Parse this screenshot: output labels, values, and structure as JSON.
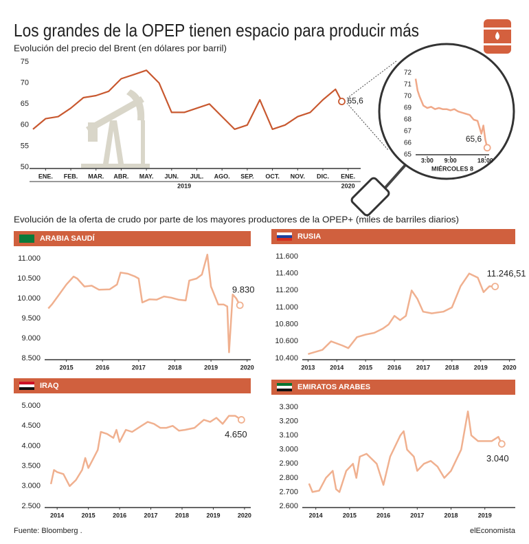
{
  "title": "Los grandes de la OPEP tienen espacio para producir más",
  "subtitle": "Evolución del precio del Brent (en dólares por barril)",
  "section_title": "Evolución de la oferta de crudo por parte de los mayores productores de la OPEP+ (miles de barriles diarios)",
  "source": "Fuente: Bloomberg .",
  "brand": "elEconomista",
  "chart_data": [
    {
      "type": "line",
      "color": "#c8582f",
      "x": [
        0,
        0.5,
        1,
        1.5,
        2,
        2.5,
        3,
        3.5,
        4,
        4.5,
        5,
        5.5,
        6,
        6.5,
        7,
        7.5,
        8,
        8.5,
        9,
        9.5,
        10,
        10.5,
        11,
        11.5,
        12,
        12.25
      ],
      "values": [
        59,
        61.5,
        62,
        64,
        66.5,
        67,
        68,
        71,
        72,
        73,
        70,
        63,
        63,
        64,
        65,
        62,
        59,
        60,
        66,
        59,
        60,
        62,
        63,
        66,
        68.5,
        65.6
      ],
      "end_label": "65,6",
      "xlim": [
        0,
        13
      ],
      "xticks": [
        {
          "value": 0.5,
          "label": "ENE."
        },
        {
          "value": 1.5,
          "label": "FEB."
        },
        {
          "value": 2.5,
          "label": "MAR."
        },
        {
          "value": 3.5,
          "label": "ABR."
        },
        {
          "value": 4.5,
          "label": "MAY."
        },
        {
          "value": 5.5,
          "label": "JUN."
        },
        {
          "value": 6.5,
          "label": "JUL."
        },
        {
          "value": 7.5,
          "label": "AGO."
        },
        {
          "value": 8.5,
          "label": "SEP."
        },
        {
          "value": 9.5,
          "label": "OCT."
        },
        {
          "value": 10.5,
          "label": "NOV."
        },
        {
          "value": 11.5,
          "label": "DIC."
        },
        {
          "value": 12.5,
          "label": "ENE."
        }
      ],
      "year_ticks": [
        {
          "value": 6,
          "label": "2019"
        },
        {
          "value": 12.5,
          "label": "2020"
        }
      ],
      "ylim": [
        50,
        75
      ],
      "yticks": [
        50,
        55,
        60,
        65,
        70,
        75
      ]
    },
    {
      "type": "line",
      "color": "#f0a888",
      "x": [
        0,
        0.5,
        1,
        2,
        3,
        4,
        5,
        6,
        7,
        8,
        9,
        10,
        11,
        12,
        13,
        14,
        15,
        16,
        17,
        17.5,
        18,
        18.5
      ],
      "values": [
        71.5,
        70.5,
        70,
        69.2,
        69,
        69.1,
        68.9,
        69,
        68.9,
        68.9,
        68.8,
        68.9,
        68.7,
        68.6,
        68.5,
        68.4,
        68,
        67.9,
        66.8,
        67.5,
        66.3,
        65.6
      ],
      "end_label": "65,6",
      "x_label": "MIÉRCOLES 8",
      "xlim": [
        0,
        19
      ],
      "xticks": [
        {
          "value": 3,
          "label": "3:00"
        },
        {
          "value": 9,
          "label": "9:00"
        },
        {
          "value": 18,
          "label": "18:00"
        }
      ],
      "ylim": [
        65,
        72
      ],
      "yticks": [
        65,
        66,
        67,
        68,
        69,
        70,
        71,
        72
      ]
    },
    {
      "type": "line",
      "title": "ARABIA SAUDÍ",
      "color": "#f0b08f",
      "x": [
        2014.5,
        2014.6,
        2014.8,
        2015.0,
        2015.2,
        2015.3,
        2015.5,
        2015.7,
        2015.9,
        2016.2,
        2016.4,
        2016.5,
        2016.7,
        2016.9,
        2017.0,
        2017.1,
        2017.3,
        2017.5,
        2017.7,
        2017.9,
        2018.1,
        2018.3,
        2018.4,
        2018.6,
        2018.75,
        2018.9,
        2019.0,
        2019.2,
        2019.35,
        2019.45,
        2019.5,
        2019.6,
        2019.7,
        2019.8
      ],
      "values": [
        9750,
        9850,
        10100,
        10350,
        10550,
        10500,
        10300,
        10320,
        10220,
        10230,
        10350,
        10650,
        10620,
        10550,
        10500,
        9900,
        9980,
        9970,
        10050,
        10020,
        9970,
        9950,
        10450,
        10500,
        10600,
        11100,
        10300,
        9850,
        9850,
        9800,
        8650,
        10100,
        10000,
        9830
      ],
      "end_label": "9.830",
      "xlim": [
        2014.4,
        2020.1
      ],
      "xticks": [
        2015,
        2016,
        2017,
        2018,
        2019,
        2020
      ],
      "ylim": [
        8500,
        11000
      ],
      "yticks": [
        {
          "value": 8500,
          "label": "8.500"
        },
        {
          "value": 9000,
          "label": "9.000"
        },
        {
          "value": 9500,
          "label": "9.500"
        },
        {
          "value": 10000,
          "label": "10.000"
        },
        {
          "value": 10500,
          "label": "10.500"
        },
        {
          "value": 11000,
          "label": "11.000"
        }
      ]
    },
    {
      "type": "line",
      "title": "RUSIA",
      "color": "#f0b08f",
      "x": [
        2013,
        2013.5,
        2013.8,
        2014.2,
        2014.4,
        2014.7,
        2015.0,
        2015.3,
        2015.6,
        2015.8,
        2016.0,
        2016.2,
        2016.4,
        2016.6,
        2016.8,
        2017.0,
        2017.3,
        2017.7,
        2018.0,
        2018.3,
        2018.6,
        2018.9,
        2019.1,
        2019.3,
        2019.5
      ],
      "values": [
        10450,
        10500,
        10600,
        10550,
        10520,
        10650,
        10680,
        10700,
        10750,
        10800,
        10900,
        10850,
        10900,
        11200,
        11100,
        10950,
        10930,
        10950,
        11000,
        11250,
        11400,
        11350,
        11180,
        11250,
        11246.51
      ],
      "end_label": "11.246,51",
      "xlim": [
        2012.8,
        2020.2
      ],
      "xticks": [
        2013,
        2014,
        2015,
        2016,
        2017,
        2018,
        2019,
        2020
      ],
      "ylim": [
        10400,
        11600
      ],
      "yticks": [
        {
          "value": 10400,
          "label": "10.400"
        },
        {
          "value": 10600,
          "label": "10.600"
        },
        {
          "value": 10800,
          "label": "10.800"
        },
        {
          "value": 11000,
          "label": "11.000"
        },
        {
          "value": 11200,
          "label": "11.200"
        },
        {
          "value": 11400,
          "label": "11.400"
        },
        {
          "value": 11600,
          "label": "11.600"
        }
      ]
    },
    {
      "type": "line",
      "title": "IRAQ",
      "color": "#f0b08f",
      "x": [
        2013.8,
        2013.9,
        2014.0,
        2014.2,
        2014.4,
        2014.6,
        2014.8,
        2014.9,
        2015.0,
        2015.1,
        2015.3,
        2015.4,
        2015.6,
        2015.8,
        2015.9,
        2016.0,
        2016.2,
        2016.4,
        2016.7,
        2016.9,
        2017.1,
        2017.3,
        2017.5,
        2017.7,
        2017.9,
        2018.1,
        2018.4,
        2018.7,
        2018.9,
        2019.1,
        2019.3,
        2019.5,
        2019.7,
        2019.9
      ],
      "values": [
        3050,
        3400,
        3350,
        3300,
        3000,
        3150,
        3400,
        3700,
        3450,
        3600,
        3900,
        4350,
        4300,
        4200,
        4400,
        4100,
        4400,
        4350,
        4500,
        4600,
        4550,
        4450,
        4450,
        4500,
        4380,
        4400,
        4450,
        4650,
        4600,
        4700,
        4550,
        4750,
        4750,
        4650
      ],
      "end_label": "4.650",
      "xlim": [
        2013.6,
        2020.2
      ],
      "xticks": [
        2014,
        2015,
        2016,
        2017,
        2018,
        2019,
        2020
      ],
      "ylim": [
        2500,
        5000
      ],
      "yticks": [
        {
          "value": 2500,
          "label": "2.500"
        },
        {
          "value": 3000,
          "label": "3.000"
        },
        {
          "value": 3500,
          "label": "3.500"
        },
        {
          "value": 4000,
          "label": "4.000"
        },
        {
          "value": 4500,
          "label": "4.500"
        },
        {
          "value": 5000,
          "label": "5.000"
        }
      ]
    },
    {
      "type": "line",
      "title": "EMIRATOS ARABES",
      "color": "#f0b08f",
      "x": [
        2013.8,
        2013.9,
        2014.1,
        2014.3,
        2014.5,
        2014.6,
        2014.7,
        2014.9,
        2015.1,
        2015.2,
        2015.3,
        2015.5,
        2015.8,
        2016.0,
        2016.2,
        2016.5,
        2016.6,
        2016.7,
        2016.9,
        2017.0,
        2017.2,
        2017.4,
        2017.6,
        2017.8,
        2018.0,
        2018.3,
        2018.5,
        2018.6,
        2018.8,
        2019.0,
        2019.2,
        2019.4,
        2019.5
      ],
      "values": [
        2760,
        2700,
        2710,
        2800,
        2850,
        2720,
        2700,
        2850,
        2900,
        2800,
        2950,
        2970,
        2900,
        2750,
        2950,
        3100,
        3130,
        3000,
        2950,
        2850,
        2900,
        2920,
        2880,
        2800,
        2850,
        3000,
        3270,
        3100,
        3060,
        3060,
        3060,
        3090,
        3040
      ],
      "end_label": "3.040",
      "xlim": [
        2013.6,
        2019.9
      ],
      "xticks": [
        2014,
        2015,
        2016,
        2017,
        2018,
        2019
      ],
      "ylim": [
        2600,
        3300
      ],
      "yticks": [
        {
          "value": 2600,
          "label": "2.600"
        },
        {
          "value": 2700,
          "label": "2.700"
        },
        {
          "value": 2800,
          "label": "2.800"
        },
        {
          "value": 2900,
          "label": "2.900"
        },
        {
          "value": 3000,
          "label": "3.000"
        },
        {
          "value": 3100,
          "label": "3.100"
        },
        {
          "value": 3200,
          "label": "3.200"
        },
        {
          "value": 3300,
          "label": "3.300"
        }
      ]
    }
  ]
}
